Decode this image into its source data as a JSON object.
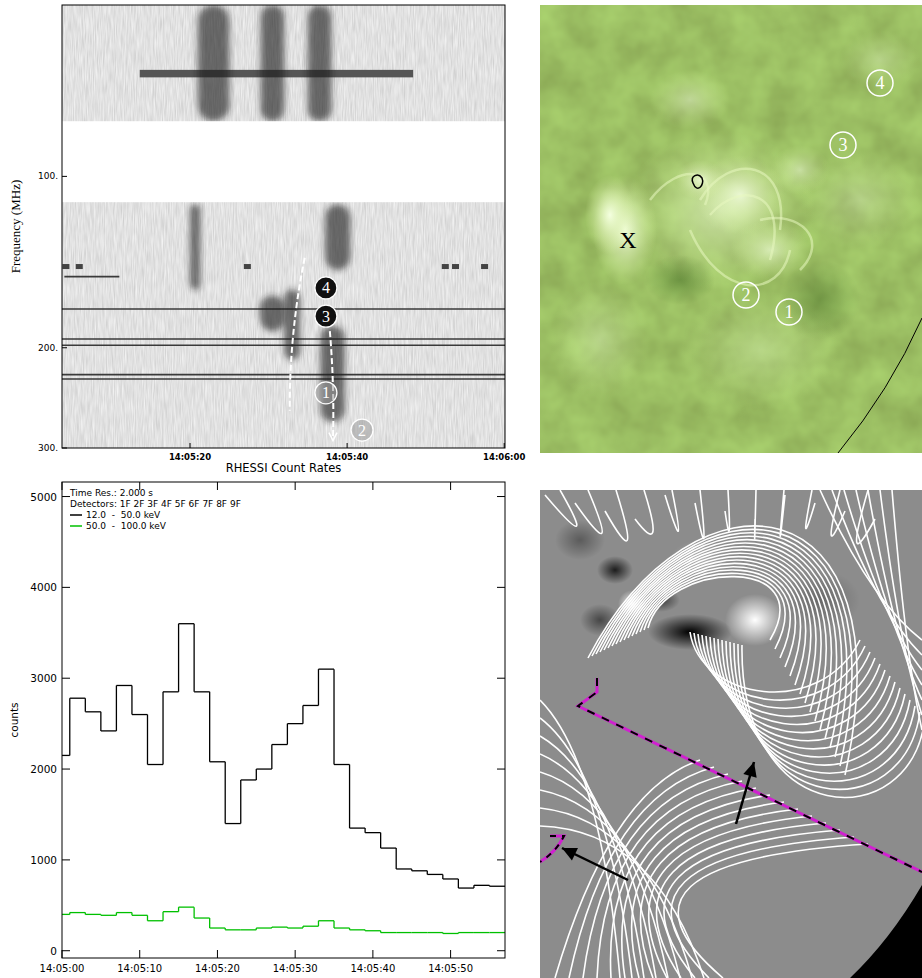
{
  "chart_data": [
    {
      "type": "spectrogram",
      "y_label": "Frequency (MHz)",
      "log": "y",
      "xlim": [
        3.7,
        60.1
      ],
      "xticks": [
        {
          "value": 20,
          "label": "14:05:20"
        },
        {
          "value": 40,
          "label": "14:05:40"
        },
        {
          "value": 60,
          "label": "14:06:00"
        }
      ],
      "ylim": [
        50,
        300
      ],
      "yticks": [
        {
          "value": 100,
          "label": "100."
        },
        {
          "value": 200,
          "label": "200."
        },
        {
          "value": 300,
          "label": "300."
        }
      ],
      "gap": [
        80,
        111
      ],
      "bursts": [
        {
          "t": [
            21,
            25
          ],
          "f": [
            50,
            80
          ]
        },
        {
          "t": [
            29,
            32
          ],
          "f": [
            50,
            80
          ]
        },
        {
          "t": [
            35,
            38
          ],
          "f": [
            50,
            80
          ]
        },
        {
          "t": [
            20,
            21.3
          ],
          "f": [
            112,
            158
          ]
        },
        {
          "t": [
            28.9,
            32.1
          ],
          "f": [
            162,
            187
          ]
        },
        {
          "t": [
            32,
            34
          ],
          "f": [
            158,
            210
          ]
        },
        {
          "t": [
            37.2,
            40.4
          ],
          "f": [
            112,
            146
          ]
        },
        {
          "t": [
            36.6,
            39.7
          ],
          "f": [
            183,
            270
          ]
        }
      ],
      "band": {
        "t": [
          13.6,
          48.4
        ],
        "f": [
          65,
          67
        ]
      },
      "interference_lines": [
        {
          "f": 150,
          "t": [
            4,
            11
          ]
        },
        {
          "f": 171,
          "t": [
            3.7,
            60.1
          ]
        },
        {
          "f": 193,
          "t": [
            3.7,
            60.1
          ]
        },
        {
          "f": 198,
          "t": [
            3.7,
            60.1
          ]
        },
        {
          "f": 223,
          "t": [
            3.7,
            60.1
          ]
        },
        {
          "f": 227,
          "t": [
            3.7,
            60.1
          ]
        }
      ],
      "blips": [
        {
          "t": 4.2,
          "f": 144
        },
        {
          "t": 5.9,
          "f": 144
        },
        {
          "t": 27.3,
          "f": 144
        },
        {
          "t": 52.5,
          "f": 144
        },
        {
          "t": 53.8,
          "f": 144
        },
        {
          "t": 57.5,
          "f": 144
        }
      ],
      "drift_lines": [
        {
          "t": [
            34.6,
            32.7
          ],
          "f": [
            139,
            258
          ]
        },
        {
          "t": [
            37.8,
            38.2
          ],
          "f": [
            187,
            290
          ]
        }
      ],
      "annotations": [
        {
          "label": "4",
          "t": 37.3,
          "f": 157
        },
        {
          "label": "3",
          "t": 37.3,
          "f": 176
        },
        {
          "label": "1",
          "t": 37.3,
          "f": 240
        },
        {
          "label": "2",
          "t": 41.9,
          "f": 279
        }
      ]
    },
    {
      "type": "image",
      "labels": [
        "X",
        "1",
        "2",
        "3",
        "4"
      ]
    },
    {
      "type": "histogram",
      "title": "RHESSI Count Rates",
      "y_label": "counts",
      "annotations": [
        "Time Res.: 2.000 s",
        "Detectors: 1F 2F 3F 4F 5F 6F 7F 8F 9F"
      ],
      "legend": "upper left",
      "xlim": [
        0,
        57
      ],
      "xticks": [
        {
          "value": 0,
          "label": "14:05:00"
        },
        {
          "value": 10,
          "label": "14:05:10"
        },
        {
          "value": 20,
          "label": "14:05:20"
        },
        {
          "value": 30,
          "label": "14:05:30"
        },
        {
          "value": 40,
          "label": "14:05:40"
        },
        {
          "value": 50,
          "label": "14:05:50"
        }
      ],
      "ylim": [
        -80,
        5160
      ],
      "yticks": [
        0,
        1000,
        2000,
        3000,
        4000,
        5000
      ],
      "bins": [
        -1,
        1,
        3,
        5,
        7,
        9,
        11,
        13,
        15,
        17,
        19,
        21,
        23,
        25,
        27,
        29,
        31,
        33,
        35,
        37,
        39,
        41,
        43,
        45,
        47,
        49,
        51,
        53,
        55,
        57
      ],
      "series": [
        {
          "name": "12.0  -  50.0 keV",
          "color": "#000000",
          "values": [
            2150,
            2780,
            2630,
            2420,
            2920,
            2600,
            2050,
            2850,
            3600,
            2850,
            2080,
            1400,
            1880,
            2000,
            2270,
            2500,
            2700,
            3100,
            2050,
            1350,
            1300,
            1130,
            900,
            880,
            840,
            790,
            690,
            720,
            710
          ]
        },
        {
          "name": "50.0  -  100.0 keV",
          "color": "#00c000",
          "values": [
            400,
            420,
            400,
            390,
            420,
            390,
            330,
            430,
            480,
            360,
            250,
            230,
            230,
            250,
            260,
            250,
            270,
            330,
            250,
            230,
            220,
            200,
            200,
            200,
            200,
            190,
            200,
            200,
            200
          ]
        }
      ]
    },
    {
      "type": "field_map"
    }
  ]
}
